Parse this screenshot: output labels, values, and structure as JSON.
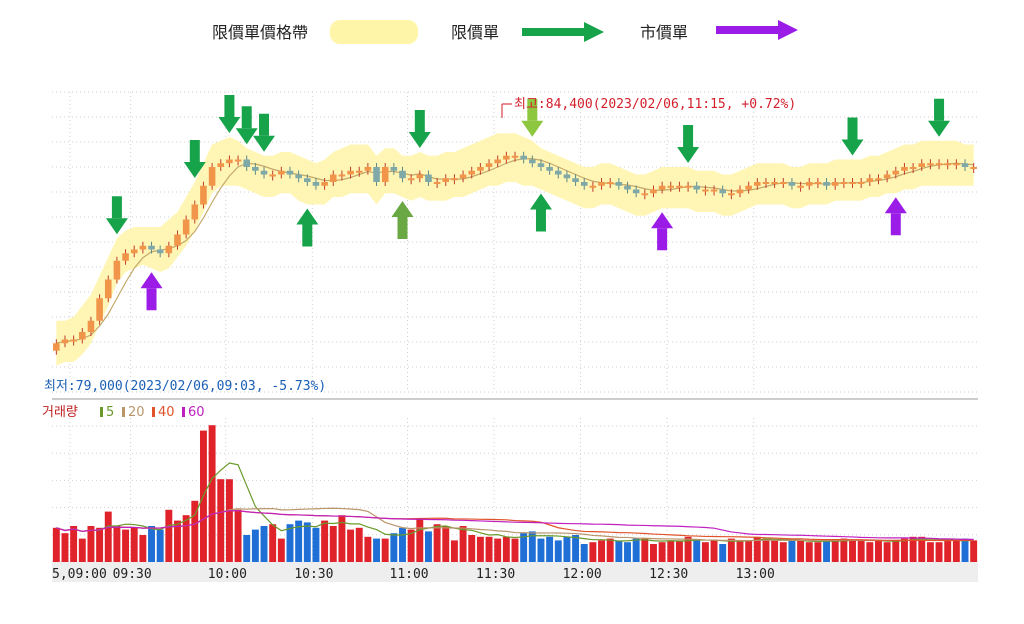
{
  "legend": {
    "band_label": "限價單價格帶",
    "limit_label": "限價單",
    "market_label": "市價單"
  },
  "annotations": {
    "high": "최고:84,400(2023/02/06,11:15, +0.72%)",
    "low": "최저:79,000(2023/02/06,09:03, -5.73%)"
  },
  "volume_legend": {
    "label": "거래량",
    "ma": [
      {
        "name": "5",
        "color": "#6a9a2a"
      },
      {
        "name": "20",
        "color": "#b8956a"
      },
      {
        "name": "40",
        "color": "#e0532a"
      },
      {
        "name": "60",
        "color": "#c020c0"
      }
    ]
  },
  "colors": {
    "band": "#fff5a8",
    "limit_arrow": "#16a34a",
    "limit_arrow_light": "#8dc63f",
    "limit_arrow_olive": "#6aa843",
    "market_arrow": "#9b1ce6",
    "up_candle": "#f0954a",
    "down_candle": "#7fa8a8",
    "vol_up": "#e0232b",
    "vol_down": "#1f6fd6"
  },
  "chart_data": {
    "type": "candlestick",
    "x_ticks": [
      "5,09:00",
      "09:30",
      "10:00",
      "10:30",
      "11:00",
      "11:30",
      "12:00",
      "12:30",
      "13:00"
    ],
    "price_range": [
      78000,
      86000
    ],
    "price_close": [
      79300,
      79400,
      79400,
      79600,
      79900,
      80500,
      81000,
      81500,
      81700,
      81800,
      81900,
      81800,
      81700,
      81900,
      82200,
      82600,
      83000,
      83500,
      84000,
      84100,
      84200,
      84200,
      84000,
      83900,
      83800,
      83800,
      83900,
      83800,
      83700,
      83600,
      83500,
      83600,
      83800,
      83800,
      83900,
      83900,
      84000,
      83600,
      84000,
      83900,
      83700,
      83700,
      83800,
      83600,
      83600,
      83700,
      83700,
      83800,
      83900,
      84000,
      84100,
      84200,
      84300,
      84300,
      84200,
      84100,
      84000,
      83900,
      83800,
      83700,
      83600,
      83500,
      83500,
      83600,
      83600,
      83500,
      83400,
      83300,
      83300,
      83400,
      83500,
      83500,
      83500,
      83500,
      83400,
      83400,
      83400,
      83300,
      83300,
      83400,
      83500,
      83600,
      83600,
      83600,
      83600,
      83500,
      83500,
      83600,
      83600,
      83500,
      83600,
      83600,
      83600,
      83600,
      83700,
      83700,
      83800,
      83900,
      84000,
      84000,
      84100,
      84100,
      84100,
      84100,
      84100,
      84000,
      84000
    ],
    "volume": [
      19,
      16,
      20,
      13,
      20,
      19,
      28,
      20,
      18,
      19,
      15,
      20,
      18,
      29,
      23,
      26,
      34,
      73,
      76,
      46,
      46,
      29,
      15,
      18,
      20,
      21,
      13,
      21,
      23,
      22,
      19,
      23,
      20,
      26,
      18,
      19,
      14,
      13,
      13,
      16,
      19,
      18,
      24,
      17,
      21,
      20,
      12,
      20,
      15,
      14,
      14,
      13,
      14,
      13,
      16,
      17,
      13,
      14,
      12,
      14,
      15,
      10,
      11,
      12,
      13,
      12,
      11,
      13,
      13,
      10,
      11,
      12,
      12,
      14,
      12,
      11,
      12,
      10,
      13,
      12,
      12,
      14,
      13,
      12,
      11,
      12,
      12,
      11,
      11,
      12,
      12,
      13,
      12,
      12,
      11,
      12,
      11,
      12,
      13,
      14,
      14,
      11,
      11,
      12,
      12,
      13,
      12
    ],
    "volume_range": [
      0,
      80
    ],
    "band_upper": [
      79900,
      79900,
      80000,
      80300,
      80600,
      81100,
      81600,
      82100,
      82300,
      82400,
      82400,
      82400,
      82400,
      82600,
      82800,
      83200,
      83600,
      84100,
      84600,
      84700,
      84800,
      84700,
      84500,
      84400,
      84300,
      84300,
      84400,
      84400,
      84300,
      84200,
      84100,
      84200,
      84400,
      84500,
      84600,
      84600,
      84600,
      84300,
      84500,
      84500,
      84300,
      84300,
      84400,
      84300,
      84300,
      84400,
      84400,
      84500,
      84600,
      84700,
      84800,
      84900,
      84900,
      84900,
      84800,
      84700,
      84500,
      84400,
      84300,
      84200,
      84100,
      84000,
      84000,
      84100,
      84100,
      84000,
      83900,
      83800,
      83800,
      83900,
      84000,
      84000,
      84000,
      84000,
      83900,
      83900,
      83900,
      83800,
      83800,
      83900,
      84000,
      84100,
      84100,
      84100,
      84100,
      84000,
      84000,
      84100,
      84100,
      84100,
      84200,
      84200,
      84200,
      84200,
      84300,
      84300,
      84400,
      84500,
      84600,
      84600,
      84700,
      84700,
      84700,
      84700,
      84700,
      84600,
      84600
    ],
    "band_lower": [
      78700,
      78800,
      78800,
      79000,
      79300,
      79800,
      80300,
      80900,
      81200,
      81300,
      81400,
      81300,
      81200,
      81300,
      81600,
      81900,
      82300,
      82800,
      83300,
      83500,
      83500,
      83500,
      83400,
      83300,
      83200,
      83200,
      83300,
      83300,
      83100,
      83000,
      83000,
      83000,
      83200,
      83200,
      83300,
      83300,
      83300,
      83000,
      83300,
      83300,
      83200,
      83100,
      83200,
      83100,
      83100,
      83100,
      83200,
      83200,
      83300,
      83400,
      83500,
      83500,
      83600,
      83600,
      83500,
      83500,
      83400,
      83300,
      83200,
      83100,
      83000,
      82900,
      82900,
      83000,
      83000,
      82900,
      82800,
      82700,
      82700,
      82800,
      82900,
      82900,
      82900,
      82900,
      82800,
      82800,
      82800,
      82700,
      82700,
      82800,
      82900,
      83000,
      83000,
      83000,
      83000,
      82900,
      82900,
      83000,
      83000,
      83000,
      83100,
      83100,
      83100,
      83100,
      83200,
      83200,
      83300,
      83300,
      83400,
      83400,
      83500,
      83500,
      83500,
      83500,
      83500,
      83500,
      83500
    ]
  }
}
